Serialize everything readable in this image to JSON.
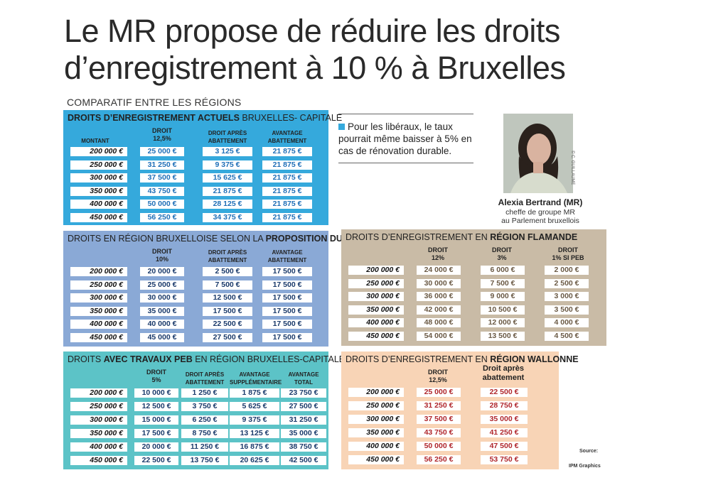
{
  "title_line1": "Le MR propose de réduire les droits",
  "title_line2": "d’enregistrement à 10 % à Bruxelles",
  "subtitle": "COMPARATIF ENTRE LES RÉGIONS",
  "amounts": [
    "200 000 €",
    "250 000 €",
    "300 000 €",
    "350 000 €",
    "400 000 €",
    "450 000 €"
  ],
  "t1": {
    "title_bold": "DROITS D’ENREGISTREMENT ACTUELS",
    "title_rest": " BRUXELLES- CAPITALE",
    "h_montant": "MONTANT",
    "h_droit_a": "DROIT",
    "h_droit_b": "12,5%",
    "h_apres_a": "DROIT APRÈS",
    "h_apres_b": "ABATTEMENT",
    "h_av_a": "AVANTAGE",
    "h_av_b": "ABATTEMENT",
    "droit": [
      "25 000 €",
      "31 250 €",
      "37 500 €",
      "43 750 €",
      "50 000 €",
      "56 250 €"
    ],
    "apres": [
      "3 125 €",
      "9 375 €",
      "15 625 €",
      "21 875 €",
      "28 125 €",
      "34 375 €"
    ],
    "avantage": [
      "21 875 €",
      "21 875 €",
      "21 875 €",
      "21 875 €",
      "21 875 €",
      "21 875 €"
    ]
  },
  "t2": {
    "title_pre": "DROITS EN RÉGION BRUXELLOISE SELON LA ",
    "title_bold": "PROPOSITION DU MR",
    "h_droit_a": "DROIT",
    "h_droit_b": "10%",
    "h_apres_a": "DROIT APRÈS",
    "h_apres_b": "ABATTEMENT",
    "h_av_a": "AVANTAGE",
    "h_av_b": "ABATTEMENT",
    "droit": [
      "20 000 €",
      "25 000 €",
      "30 000 €",
      "35 000 €",
      "40 000 €",
      "45 000 €"
    ],
    "apres": [
      "2 500 €",
      "7 500 €",
      "12 500 €",
      "17 500 €",
      "22 500 €",
      "27 500 €"
    ],
    "avantage": [
      "17 500 €",
      "17 500 €",
      "17 500 €",
      "17 500 €",
      "17 500 €",
      "17 500 €"
    ]
  },
  "t3": {
    "title_pre": "DROITS ",
    "title_bold": "AVEC TRAVAUX PEB",
    "title_rest": " EN RÉGION BRUXELLES-CAPITALE",
    "h_droit_a": "DROIT",
    "h_droit_b": "5%",
    "h_apres_a": "DROIT APRÈS",
    "h_apres_b": "ABATTEMENT",
    "h_sup_a": "AVANTAGE",
    "h_sup_b": "SUPPLÉMENTAIRE",
    "h_tot_a": "AVANTAGE",
    "h_tot_b": "TOTAL",
    "droit": [
      "10 000 €",
      "12 500 €",
      "15 000 €",
      "17 500 €",
      "20 000 €",
      "22 500 €"
    ],
    "apres": [
      "1 250 €",
      "3 750 €",
      "6 250 €",
      "8 750 €",
      "11 250 €",
      "13 750 €"
    ],
    "sup": [
      "1 875 €",
      "5 625 €",
      "9 375 €",
      "13 125 €",
      "16 875 €",
      "20 625 €"
    ],
    "total": [
      "23 750 €",
      "27 500 €",
      "31 250 €",
      "35 000 €",
      "38 750 €",
      "42 500 €"
    ]
  },
  "t4": {
    "title_pre": "DROITS D’ENREGISTREMENT EN ",
    "title_bold": "RÉGION FLAMANDE",
    "h1_a": "DROIT",
    "h1_b": "12%",
    "h2_a": "DROIT",
    "h2_b": "3%",
    "h3_a": "DROIT",
    "h3_b": "1% SI PEB",
    "c1": [
      "24 000 €",
      "30 000 €",
      "36 000 €",
      "42 000 €",
      "48 000 €",
      "54 000 €"
    ],
    "c2": [
      "6 000 €",
      "7 500 €",
      "9 000 €",
      "10 500 €",
      "12 000 €",
      "13 500 €"
    ],
    "c3": [
      "2 000 €",
      "2 500 €",
      "3 000 €",
      "3 500 €",
      "4 000 €",
      "4 500 €"
    ]
  },
  "t5": {
    "title_pre": "DROITS D’ENREGISTREMENT EN ",
    "title_bold": "RÉGION WALLONNE",
    "h1_a": "DROIT",
    "h1_b": "12,5%",
    "h2_a": "Droit après",
    "h2_b": "abattement",
    "c1": [
      "25 000 €",
      "31 250 €",
      "37 500 €",
      "43 750 €",
      "50 000 €",
      "56 250 €"
    ],
    "c2": [
      "22 500 €",
      "28 750 €",
      "35 000 €",
      "41 250 €",
      "47 500 €",
      "53 750 €"
    ]
  },
  "note": "Pour les libéraux, le taux pourrait même baisser à 5% en cas de rénovation durable.",
  "photo_credit": "© C. GUILLAUME",
  "person_name": "Alexia Bertrand (MR)",
  "person_role_1": "cheffe de groupe MR",
  "person_role_2": "au Parlement bruxellois",
  "source_label": "Source:",
  "source_value": "IPM Graphics",
  "colors": {
    "blue_val": "#1f6fb7",
    "dark_val": "#1a3a6b",
    "brown_val": "#6b5a45",
    "red_val": "#b0272d",
    "box1": "#35a9dc",
    "box2": "#8aa9d6",
    "box3": "#5cc3c7",
    "box4": "#c9bba6",
    "box5": "#f8d4b6"
  }
}
